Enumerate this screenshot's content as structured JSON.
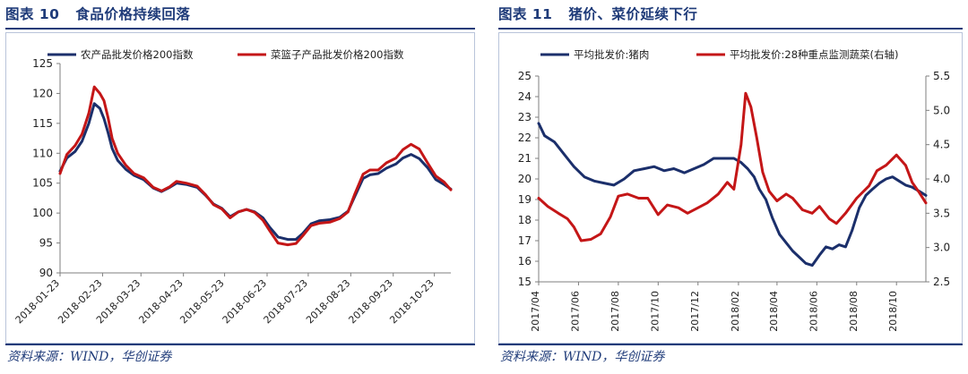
{
  "figures": [
    {
      "number_label": "图表 10",
      "title": "食品价格持续回落",
      "source": "资料来源：WIND，华创证券"
    },
    {
      "number_label": "图表 11",
      "title": "猪价、菜价延续下行",
      "source": "资料来源：WIND，华创证券"
    }
  ],
  "chart_data": [
    {
      "type": "line",
      "grid": false,
      "legend_position": "top",
      "xlabel": "",
      "ylabel": "",
      "ylim": [
        90,
        125
      ],
      "yticks": [
        90,
        95,
        100,
        105,
        110,
        115,
        120,
        125
      ],
      "xrange": [
        "2018-01-23",
        "2018-11-04"
      ],
      "xticks": [
        "2018-01-23",
        "2018-02-23",
        "2018-03-23",
        "2018-04-23",
        "2018-05-23",
        "2018-06-23",
        "2018-07-23",
        "2018-08-23",
        "2018-09-23",
        "2018-10-23"
      ],
      "series": [
        {
          "name": "农产品批发价格200指数",
          "color": "#1b2f6b",
          "points": [
            [
              "2018-01-23",
              107.0
            ],
            [
              "2018-01-28",
              109.2
            ],
            [
              "2018-02-03",
              110.3
            ],
            [
              "2018-02-08",
              112.0
            ],
            [
              "2018-02-13",
              115.0
            ],
            [
              "2018-02-17",
              118.3
            ],
            [
              "2018-02-21",
              117.5
            ],
            [
              "2018-02-24",
              115.8
            ],
            [
              "2018-02-27",
              113.5
            ],
            [
              "2018-03-02",
              110.8
            ],
            [
              "2018-03-06",
              108.8
            ],
            [
              "2018-03-12",
              107.3
            ],
            [
              "2018-03-18",
              106.3
            ],
            [
              "2018-03-25",
              105.6
            ],
            [
              "2018-04-01",
              104.2
            ],
            [
              "2018-04-07",
              103.6
            ],
            [
              "2018-04-13",
              104.3
            ],
            [
              "2018-04-18",
              105.0
            ],
            [
              "2018-04-25",
              104.8
            ],
            [
              "2018-05-03",
              104.3
            ],
            [
              "2018-05-09",
              103.0
            ],
            [
              "2018-05-15",
              101.5
            ],
            [
              "2018-05-21",
              100.8
            ],
            [
              "2018-05-27",
              99.4
            ],
            [
              "2018-06-02",
              100.2
            ],
            [
              "2018-06-08",
              100.6
            ],
            [
              "2018-06-14",
              100.2
            ],
            [
              "2018-06-20",
              99.2
            ],
            [
              "2018-06-25",
              97.6
            ],
            [
              "2018-07-01",
              96.0
            ],
            [
              "2018-07-08",
              95.6
            ],
            [
              "2018-07-14",
              95.6
            ],
            [
              "2018-07-19",
              96.6
            ],
            [
              "2018-07-25",
              98.2
            ],
            [
              "2018-07-31",
              98.7
            ],
            [
              "2018-08-08",
              98.9
            ],
            [
              "2018-08-15",
              99.3
            ],
            [
              "2018-08-21",
              100.3
            ],
            [
              "2018-08-26",
              102.8
            ],
            [
              "2018-09-01",
              105.8
            ],
            [
              "2018-09-06",
              106.4
            ],
            [
              "2018-09-12",
              106.6
            ],
            [
              "2018-09-18",
              107.5
            ],
            [
              "2018-09-25",
              108.2
            ],
            [
              "2018-09-30",
              109.2
            ],
            [
              "2018-10-06",
              109.8
            ],
            [
              "2018-10-12",
              109.1
            ],
            [
              "2018-10-18",
              107.6
            ],
            [
              "2018-10-24",
              105.6
            ],
            [
              "2018-10-30",
              104.8
            ],
            [
              "2018-11-04",
              104.0
            ]
          ]
        },
        {
          "name": "菜篮子产品批发价格200指数",
          "color": "#c41617",
          "points": [
            [
              "2018-01-23",
              106.6
            ],
            [
              "2018-01-28",
              109.8
            ],
            [
              "2018-02-03",
              111.3
            ],
            [
              "2018-02-08",
              113.2
            ],
            [
              "2018-02-13",
              116.7
            ],
            [
              "2018-02-17",
              121.1
            ],
            [
              "2018-02-21",
              120.0
            ],
            [
              "2018-02-24",
              118.8
            ],
            [
              "2018-02-27",
              116.0
            ],
            [
              "2018-03-02",
              112.5
            ],
            [
              "2018-03-06",
              110.0
            ],
            [
              "2018-03-12",
              108.0
            ],
            [
              "2018-03-18",
              106.6
            ],
            [
              "2018-03-25",
              105.9
            ],
            [
              "2018-04-01",
              104.3
            ],
            [
              "2018-04-07",
              103.7
            ],
            [
              "2018-04-13",
              104.4
            ],
            [
              "2018-04-18",
              105.3
            ],
            [
              "2018-04-25",
              105.0
            ],
            [
              "2018-05-03",
              104.5
            ],
            [
              "2018-05-09",
              103.1
            ],
            [
              "2018-05-15",
              101.4
            ],
            [
              "2018-05-21",
              100.7
            ],
            [
              "2018-05-27",
              99.2
            ],
            [
              "2018-06-02",
              100.2
            ],
            [
              "2018-06-08",
              100.6
            ],
            [
              "2018-06-14",
              100.1
            ],
            [
              "2018-06-20",
              98.8
            ],
            [
              "2018-06-25",
              97.0
            ],
            [
              "2018-07-01",
              95.0
            ],
            [
              "2018-07-08",
              94.7
            ],
            [
              "2018-07-14",
              94.9
            ],
            [
              "2018-07-19",
              96.2
            ],
            [
              "2018-07-25",
              97.9
            ],
            [
              "2018-07-31",
              98.3
            ],
            [
              "2018-08-08",
              98.5
            ],
            [
              "2018-08-15",
              99.1
            ],
            [
              "2018-08-21",
              100.2
            ],
            [
              "2018-08-26",
              103.2
            ],
            [
              "2018-09-01",
              106.5
            ],
            [
              "2018-09-06",
              107.2
            ],
            [
              "2018-09-12",
              107.2
            ],
            [
              "2018-09-18",
              108.4
            ],
            [
              "2018-09-25",
              109.2
            ],
            [
              "2018-09-30",
              110.6
            ],
            [
              "2018-10-06",
              111.5
            ],
            [
              "2018-10-12",
              110.7
            ],
            [
              "2018-10-18",
              108.4
            ],
            [
              "2018-10-24",
              106.2
            ],
            [
              "2018-10-30",
              105.2
            ],
            [
              "2018-11-04",
              103.9
            ]
          ]
        }
      ]
    },
    {
      "type": "line",
      "grid": false,
      "legend_position": "top",
      "xlabel": "",
      "ylabel": "",
      "ylim": [
        15,
        25
      ],
      "yticks": [
        15,
        16,
        17,
        18,
        19,
        20,
        21,
        22,
        23,
        24,
        25
      ],
      "y2lim": [
        2.5,
        5.5
      ],
      "y2ticks": [
        2.5,
        3.0,
        3.5,
        4.0,
        4.5,
        5.0,
        5.5
      ],
      "xrange": [
        "2017-04-01",
        "2018-11-15"
      ],
      "xticks": [
        "2017/04",
        "2017/06",
        "2017/08",
        "2017/10",
        "2017/12",
        "2018/02",
        "2018/04",
        "2018/06",
        "2018/08",
        "2018/10"
      ],
      "series": [
        {
          "name": "平均批发价:猪肉",
          "axis": "left",
          "color": "#1b2f6b",
          "points": [
            [
              "2017-04-01",
              22.7
            ],
            [
              "2017-04-10",
              22.1
            ],
            [
              "2017-04-25",
              21.8
            ],
            [
              "2017-05-10",
              21.2
            ],
            [
              "2017-05-25",
              20.6
            ],
            [
              "2017-06-10",
              20.1
            ],
            [
              "2017-06-25",
              19.9
            ],
            [
              "2017-07-10",
              19.8
            ],
            [
              "2017-07-25",
              19.7
            ],
            [
              "2017-08-10",
              20.0
            ],
            [
              "2017-08-25",
              20.4
            ],
            [
              "2017-09-10",
              20.5
            ],
            [
              "2017-09-25",
              20.6
            ],
            [
              "2017-10-10",
              20.4
            ],
            [
              "2017-10-25",
              20.5
            ],
            [
              "2017-11-10",
              20.3
            ],
            [
              "2017-11-25",
              20.5
            ],
            [
              "2017-12-10",
              20.7
            ],
            [
              "2017-12-25",
              21.0
            ],
            [
              "2018-01-10",
              21.0
            ],
            [
              "2018-01-25",
              21.0
            ],
            [
              "2018-02-05",
              20.8
            ],
            [
              "2018-02-15",
              20.5
            ],
            [
              "2018-02-25",
              20.1
            ],
            [
              "2018-03-05",
              19.5
            ],
            [
              "2018-03-15",
              19.0
            ],
            [
              "2018-03-25",
              18.1
            ],
            [
              "2018-04-05",
              17.3
            ],
            [
              "2018-04-15",
              16.9
            ],
            [
              "2018-04-25",
              16.5
            ],
            [
              "2018-05-05",
              16.2
            ],
            [
              "2018-05-15",
              15.9
            ],
            [
              "2018-05-25",
              15.8
            ],
            [
              "2018-06-05",
              16.3
            ],
            [
              "2018-06-15",
              16.7
            ],
            [
              "2018-06-25",
              16.6
            ],
            [
              "2018-07-05",
              16.8
            ],
            [
              "2018-07-15",
              16.7
            ],
            [
              "2018-07-25",
              17.5
            ],
            [
              "2018-08-05",
              18.6
            ],
            [
              "2018-08-15",
              19.2
            ],
            [
              "2018-08-25",
              19.5
            ],
            [
              "2018-09-05",
              19.8
            ],
            [
              "2018-09-15",
              20.0
            ],
            [
              "2018-09-25",
              20.1
            ],
            [
              "2018-10-05",
              19.9
            ],
            [
              "2018-10-15",
              19.7
            ],
            [
              "2018-10-25",
              19.6
            ],
            [
              "2018-11-05",
              19.4
            ],
            [
              "2018-11-15",
              19.2
            ]
          ]
        },
        {
          "name": "平均批发价:28种重点监测蔬菜(右轴)",
          "axis": "right",
          "color": "#c41617",
          "points": [
            [
              "2017-04-01",
              3.72
            ],
            [
              "2017-04-15",
              3.6
            ],
            [
              "2017-05-01",
              3.5
            ],
            [
              "2017-05-15",
              3.42
            ],
            [
              "2017-05-25",
              3.3
            ],
            [
              "2017-06-05",
              3.1
            ],
            [
              "2017-06-20",
              3.12
            ],
            [
              "2017-07-05",
              3.2
            ],
            [
              "2017-07-20",
              3.45
            ],
            [
              "2017-08-01",
              3.75
            ],
            [
              "2017-08-15",
              3.78
            ],
            [
              "2017-09-01",
              3.72
            ],
            [
              "2017-09-15",
              3.72
            ],
            [
              "2017-10-01",
              3.48
            ],
            [
              "2017-10-15",
              3.62
            ],
            [
              "2017-11-01",
              3.58
            ],
            [
              "2017-11-15",
              3.5
            ],
            [
              "2017-12-01",
              3.58
            ],
            [
              "2017-12-15",
              3.65
            ],
            [
              "2018-01-01",
              3.78
            ],
            [
              "2018-01-15",
              3.95
            ],
            [
              "2018-01-25",
              3.85
            ],
            [
              "2018-02-05",
              4.5
            ],
            [
              "2018-02-12",
              5.25
            ],
            [
              "2018-02-20",
              5.05
            ],
            [
              "2018-03-01",
              4.6
            ],
            [
              "2018-03-10",
              4.1
            ],
            [
              "2018-03-20",
              3.82
            ],
            [
              "2018-04-01",
              3.68
            ],
            [
              "2018-04-15",
              3.78
            ],
            [
              "2018-04-25",
              3.72
            ],
            [
              "2018-05-10",
              3.55
            ],
            [
              "2018-05-25",
              3.5
            ],
            [
              "2018-06-05",
              3.6
            ],
            [
              "2018-06-20",
              3.42
            ],
            [
              "2018-07-01",
              3.35
            ],
            [
              "2018-07-15",
              3.5
            ],
            [
              "2018-08-01",
              3.72
            ],
            [
              "2018-08-20",
              3.9
            ],
            [
              "2018-09-01",
              4.12
            ],
            [
              "2018-09-15",
              4.2
            ],
            [
              "2018-10-01",
              4.35
            ],
            [
              "2018-10-15",
              4.2
            ],
            [
              "2018-10-25",
              3.95
            ],
            [
              "2018-11-05",
              3.8
            ],
            [
              "2018-11-15",
              3.65
            ]
          ]
        }
      ]
    }
  ]
}
